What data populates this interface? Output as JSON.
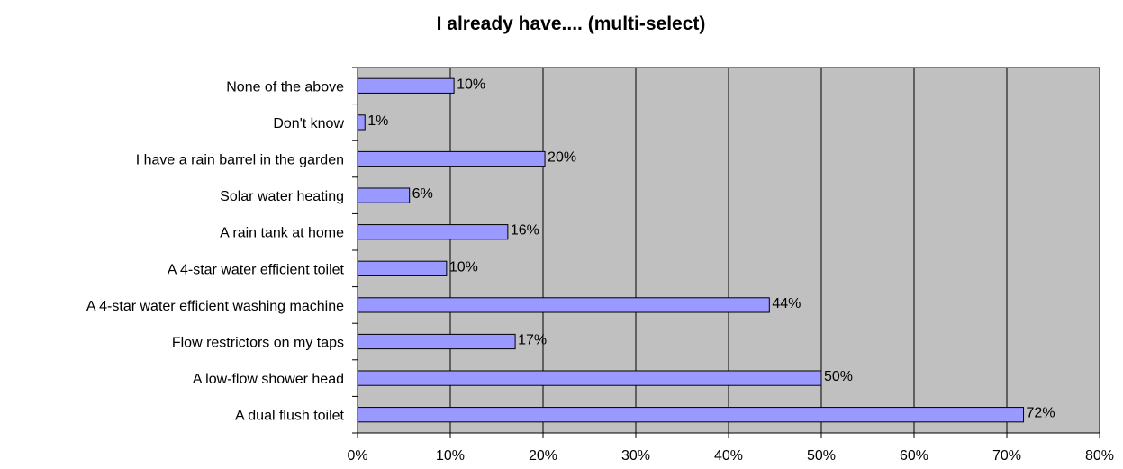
{
  "chart_data": {
    "type": "bar",
    "orientation": "horizontal",
    "title": "I already have.... (multi-select)",
    "xlabel": "",
    "ylabel": "",
    "categories": [
      "None of the above",
      "Don't know",
      "I have a rain barrel in the garden",
      "Solar water heating",
      "A rain tank at home",
      "A 4-star water efficient toilet",
      "A 4-star water efficient washing machine",
      "Flow restrictors on my taps",
      "A low-flow shower head",
      "A dual flush toilet"
    ],
    "values": [
      10.4,
      0.8,
      20.2,
      5.6,
      16.2,
      9.6,
      44.4,
      17.0,
      50.0,
      71.8
    ],
    "data_labels": [
      "10%",
      "1%",
      "20%",
      "6%",
      "16%",
      "10%",
      "44%",
      "17%",
      "50%",
      "72%"
    ],
    "xlim": [
      0,
      80
    ],
    "xticks": [
      0,
      10,
      20,
      30,
      40,
      50,
      60,
      70,
      80
    ],
    "xtick_labels": [
      "0%",
      "10%",
      "20%",
      "30%",
      "40%",
      "50%",
      "60%",
      "70%",
      "80%"
    ],
    "grid": true,
    "legend": "none",
    "colors": {
      "bar_fill": "#9999ff",
      "bar_stroke": "#000000",
      "plot_bg": "#c0c0c0",
      "gridline": "#000000"
    }
  }
}
